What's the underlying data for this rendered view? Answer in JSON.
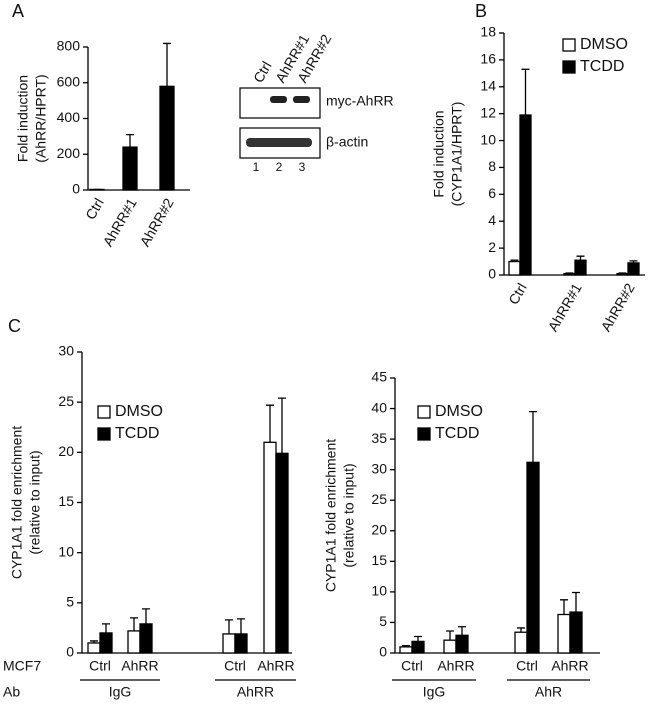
{
  "panels": [
    "A",
    "B",
    "C"
  ],
  "blot": {
    "lanes": [
      "Ctrl",
      "AhRR#1",
      "AhRR#2"
    ],
    "bands": [
      "myc-AhRR",
      "β-actin"
    ],
    "lane_numbers": [
      "1",
      "2",
      "3"
    ]
  },
  "chart_data": [
    {
      "type": "bar",
      "ylabel": [
        "Fold induction",
        "(AhRR/HPRT)"
      ],
      "categories": [
        "Ctrl",
        "AhRR#1",
        "AhRR#2"
      ],
      "values": [
        3,
        240,
        580
      ],
      "errors": [
        0,
        70,
        240
      ],
      "color": "#000000",
      "ylim": [
        0,
        800
      ],
      "yticks": [
        0,
        200,
        400,
        600,
        800
      ]
    },
    {
      "type": "bar",
      "ylabel": [
        "Fold induction",
        "(CYP1A1/HPRT)"
      ],
      "categories": [
        "Ctrl",
        "AhRR#1",
        "AhRR#2"
      ],
      "series": [
        {
          "name": "DMSO",
          "color": "#ffffff",
          "values": [
            1.0,
            0.1,
            0.1
          ],
          "errors": [
            0.1,
            0.05,
            0.05
          ]
        },
        {
          "name": "TCDD",
          "color": "#000000",
          "values": [
            11.9,
            1.1,
            0.9
          ],
          "errors": [
            3.4,
            0.3,
            0.15
          ]
        }
      ],
      "ylim": [
        0,
        18
      ],
      "yticks": [
        0,
        2,
        4,
        6,
        8,
        10,
        12,
        14,
        16,
        18
      ]
    },
    {
      "type": "bar",
      "ylabel": [
        "CYP1A1 fold enrichment",
        "(relative to input)"
      ],
      "row_labels": [
        "MCF7",
        "Ab"
      ],
      "categories": [
        "Ctrl",
        "AhRR",
        "Ctrl",
        "AhRR"
      ],
      "x_groups": [
        "IgG",
        "AhRR"
      ],
      "series": [
        {
          "name": "DMSO",
          "color": "#ffffff",
          "values": [
            1.0,
            2.2,
            1.9,
            21.0
          ],
          "errors": [
            0.2,
            1.3,
            1.4,
            3.7
          ]
        },
        {
          "name": "TCDD",
          "color": "#000000",
          "values": [
            2.0,
            2.9,
            1.9,
            19.9
          ],
          "errors": [
            0.9,
            1.5,
            1.5,
            5.5
          ]
        }
      ],
      "ylim": [
        0,
        30
      ],
      "yticks": [
        0,
        5,
        10,
        15,
        20,
        25,
        30
      ]
    },
    {
      "type": "bar",
      "ylabel": [
        "CYP1A1 fold enrichment",
        "(relative to input)"
      ],
      "categories": [
        "Ctrl",
        "AhRR",
        "Ctrl",
        "AhRR"
      ],
      "x_groups": [
        "IgG",
        "AhR"
      ],
      "series": [
        {
          "name": "DMSO",
          "color": "#ffffff",
          "values": [
            1.0,
            2.1,
            3.4,
            6.3
          ],
          "errors": [
            0.2,
            1.5,
            0.7,
            2.4
          ]
        },
        {
          "name": "TCDD",
          "color": "#000000",
          "values": [
            1.9,
            2.9,
            31.2,
            6.7
          ],
          "errors": [
            0.8,
            1.4,
            8.3,
            3.2
          ]
        }
      ],
      "ylim": [
        0,
        45
      ],
      "yticks": [
        0,
        5,
        10,
        15,
        20,
        25,
        30,
        35,
        40,
        45
      ]
    }
  ]
}
